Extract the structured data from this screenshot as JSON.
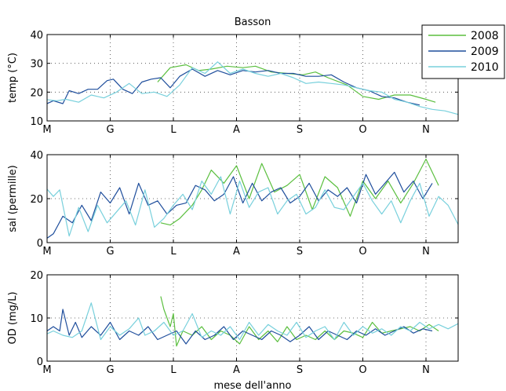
{
  "figure": {
    "title": "Basson",
    "xlabel": "mese dell'anno"
  },
  "legend": {
    "placement": "top-right",
    "entries": [
      {
        "label": "2008",
        "color": "#5bbf3f"
      },
      {
        "label": "2009",
        "color": "#1f4e9c"
      },
      {
        "label": "2010",
        "color": "#78d0dc"
      }
    ]
  },
  "chart_data": [
    {
      "type": "line",
      "title": "Basson",
      "xlabel": "",
      "ylabel": "temp (°C)",
      "xlim": [
        0,
        10
      ],
      "ylim": [
        10,
        40
      ],
      "yticks": [
        10,
        20,
        30,
        40
      ],
      "categories": [
        "M",
        "G",
        "L",
        "A",
        "S",
        "O",
        "N"
      ],
      "category_x": [
        0,
        1,
        2,
        3,
        4,
        5,
        6
      ],
      "grid": true,
      "series": [
        {
          "name": "2008",
          "color": "#5bbf3f",
          "x": [
            1.75,
            1.95,
            2.2,
            2.4,
            2.6,
            2.85,
            3.1,
            3.3,
            3.55,
            3.8,
            4.05,
            4.25,
            4.45,
            4.75,
            5.0,
            5.25,
            5.5,
            5.75,
            6.0,
            6.15
          ],
          "y": [
            23.5,
            28.5,
            29.5,
            27.5,
            28,
            29.0,
            28.5,
            29,
            27.0,
            26.5,
            26.0,
            27,
            25.0,
            22.5,
            18.5,
            17.5,
            19,
            19.0,
            17.5,
            16.5
          ]
        },
        {
          "name": "2009",
          "color": "#1f4e9c",
          "x": [
            -0.05,
            0.1,
            0.25,
            0.35,
            0.5,
            0.65,
            0.8,
            0.95,
            1.05,
            1.2,
            1.35,
            1.5,
            1.65,
            1.8,
            1.95,
            2.1,
            2.3,
            2.5,
            2.7,
            2.9,
            3.1,
            3.3,
            3.5,
            3.7,
            3.9,
            4.1,
            4.3,
            4.5,
            4.7,
            4.9,
            5.1,
            5.3,
            5.5,
            5.7,
            5.9
          ],
          "y": [
            15.5,
            17,
            16,
            20.5,
            19.5,
            21,
            21,
            24,
            24.5,
            21,
            19.5,
            23.5,
            24.5,
            25,
            21.5,
            25.5,
            28,
            25.5,
            27.5,
            26.0,
            27.5,
            27.0,
            27.5,
            26.5,
            26.5,
            25.5,
            25.5,
            26.0,
            23.5,
            21.5,
            20.5,
            18.5,
            18.0,
            16.5,
            15.5
          ]
        },
        {
          "name": "2010",
          "color": "#78d0dc",
          "x": [
            -0.05,
            0.15,
            0.3,
            0.5,
            0.7,
            0.9,
            1.1,
            1.3,
            1.5,
            1.7,
            1.9,
            2.1,
            2.3,
            2.5,
            2.7,
            2.9,
            3.1,
            3.3,
            3.5,
            3.7,
            3.9,
            4.1,
            4.3,
            4.5,
            4.7,
            4.9,
            5.1,
            5.3,
            5.5,
            5.7,
            5.9,
            6.1,
            6.3,
            6.55
          ],
          "y": [
            17.5,
            17,
            17.5,
            16.5,
            19,
            18,
            20,
            23,
            19.5,
            20,
            18.5,
            22.5,
            28.5,
            26.5,
            30.5,
            26.5,
            28,
            26.5,
            25.5,
            26.5,
            25,
            23,
            23.5,
            23.0,
            22.5,
            21.5,
            20.5,
            20.0,
            17.5,
            16.5,
            15.0,
            14.0,
            13.5,
            12.0
          ]
        }
      ]
    },
    {
      "type": "line",
      "xlabel": "",
      "ylabel": "sal (permille)",
      "xlim": [
        0,
        10
      ],
      "ylim": [
        0,
        40
      ],
      "yticks": [
        0,
        20,
        40
      ],
      "categories": [
        "M",
        "G",
        "L",
        "A",
        "S",
        "O",
        "N"
      ],
      "category_x": [
        0,
        1,
        2,
        3,
        4,
        5,
        6
      ],
      "grid": true,
      "series": [
        {
          "name": "2008",
          "color": "#5bbf3f",
          "x": [
            1.8,
            1.95,
            2.1,
            2.3,
            2.45,
            2.6,
            2.8,
            3.0,
            3.2,
            3.4,
            3.6,
            3.8,
            4.0,
            4.2,
            4.4,
            4.6,
            4.8,
            5.0,
            5.2,
            5.4,
            5.6,
            5.8,
            6.0,
            6.2
          ],
          "y": [
            9,
            8,
            11,
            17,
            24,
            33,
            27,
            35,
            20,
            36,
            23,
            26,
            31,
            15,
            30,
            25,
            12,
            28,
            20,
            28,
            18,
            27,
            38,
            26
          ]
        },
        {
          "name": "2009",
          "color": "#1f4e9c",
          "x": [
            -0.05,
            0.1,
            0.25,
            0.4,
            0.55,
            0.7,
            0.85,
            1.0,
            1.15,
            1.3,
            1.45,
            1.6,
            1.75,
            1.9,
            2.05,
            2.2,
            2.35,
            2.5,
            2.65,
            2.8,
            2.95,
            3.1,
            3.25,
            3.4,
            3.55,
            3.7,
            3.85,
            4.0,
            4.15,
            4.3,
            4.45,
            4.6,
            4.75,
            4.9,
            5.05,
            5.2,
            5.35,
            5.5,
            5.65,
            5.8,
            5.95,
            6.1
          ],
          "y": [
            1,
            4,
            12,
            9,
            17,
            10,
            23,
            18,
            25,
            13,
            27,
            17,
            19,
            13,
            17,
            18,
            26,
            24,
            19,
            22,
            30,
            18,
            27,
            19,
            23,
            25,
            18,
            21,
            27,
            19,
            24,
            21,
            25,
            18,
            31,
            22,
            27,
            32,
            23,
            28,
            20,
            27
          ]
        },
        {
          "name": "2010",
          "color": "#78d0dc",
          "x": [
            -0.05,
            0.1,
            0.2,
            0.35,
            0.5,
            0.65,
            0.8,
            0.95,
            1.1,
            1.25,
            1.4,
            1.55,
            1.7,
            1.85,
            2.0,
            2.15,
            2.3,
            2.45,
            2.6,
            2.75,
            2.9,
            3.05,
            3.2,
            3.35,
            3.5,
            3.65,
            3.8,
            3.95,
            4.1,
            4.25,
            4.4,
            4.55,
            4.7,
            4.85,
            5.0,
            5.15,
            5.3,
            5.45,
            5.6,
            5.75,
            5.9,
            6.05,
            6.2,
            6.35,
            6.55
          ],
          "y": [
            26,
            21,
            24,
            3,
            16,
            5,
            17,
            9,
            14,
            19,
            8,
            24,
            7,
            11,
            17,
            22,
            15,
            28,
            22,
            30,
            13,
            28,
            16,
            23,
            25,
            13,
            19,
            22,
            13,
            16,
            24,
            16,
            15,
            21,
            27,
            19,
            13,
            19,
            9,
            19,
            27,
            12,
            21,
            17,
            6
          ]
        }
      ]
    },
    {
      "type": "line",
      "xlabel": "mese dell'anno",
      "ylabel": "OD (mg/L)",
      "xlim": [
        0,
        10
      ],
      "ylim": [
        0,
        20
      ],
      "yticks": [
        0,
        10,
        20
      ],
      "categories": [
        "M",
        "G",
        "L",
        "A",
        "S",
        "O",
        "N"
      ],
      "category_x": [
        0,
        1,
        2,
        3,
        4,
        5,
        6
      ],
      "grid": true,
      "series": [
        {
          "name": "2008",
          "color": "#5bbf3f",
          "x": [
            1.8,
            1.85,
            1.9,
            1.95,
            2.0,
            2.05,
            2.15,
            2.3,
            2.45,
            2.6,
            2.75,
            2.9,
            3.05,
            3.2,
            3.35,
            3.5,
            3.65,
            3.8,
            3.95,
            4.1,
            4.25,
            4.4,
            4.55,
            4.7,
            4.85,
            5.0,
            5.15,
            5.3,
            5.45,
            5.6,
            5.75,
            5.9,
            6.05,
            6.2
          ],
          "y": [
            15,
            12,
            10,
            8,
            11,
            3.5,
            7,
            6,
            8,
            5,
            7,
            6,
            4,
            8,
            5,
            7,
            4.5,
            8,
            5,
            6,
            5,
            7,
            5,
            7,
            6.5,
            5.5,
            9,
            6.5,
            7,
            7.5,
            8,
            7,
            8.5,
            7
          ]
        },
        {
          "name": "2009",
          "color": "#1f4e9c",
          "x": [
            -0.05,
            0.1,
            0.2,
            0.25,
            0.35,
            0.45,
            0.55,
            0.7,
            0.85,
            1.0,
            1.15,
            1.3,
            1.45,
            1.6,
            1.75,
            1.9,
            2.05,
            2.2,
            2.35,
            2.5,
            2.65,
            2.8,
            2.95,
            3.1,
            3.25,
            3.4,
            3.55,
            3.7,
            3.85,
            4.0,
            4.15,
            4.3,
            4.45,
            4.6,
            4.75,
            4.9,
            5.05,
            5.2,
            5.35,
            5.5,
            5.65,
            5.8,
            5.95,
            6.1
          ],
          "y": [
            6.5,
            8,
            7,
            12,
            6,
            9,
            5.5,
            8,
            6,
            9,
            5,
            7,
            6,
            8,
            5,
            6,
            7,
            4,
            7,
            5,
            6,
            8,
            5,
            7,
            6,
            5,
            7,
            6,
            4.5,
            6,
            8,
            5,
            7,
            6,
            5,
            7,
            6,
            7.5,
            6,
            7,
            8,
            6.5,
            7.5,
            7
          ]
        },
        {
          "name": "2010",
          "color": "#78d0dc",
          "x": [
            -0.05,
            0.1,
            0.25,
            0.4,
            0.55,
            0.7,
            0.85,
            1.0,
            1.15,
            1.3,
            1.45,
            1.55,
            1.7,
            1.85,
            2.0,
            2.15,
            2.3,
            2.45,
            2.6,
            2.75,
            2.9,
            3.05,
            3.2,
            3.35,
            3.5,
            3.65,
            3.8,
            3.95,
            4.1,
            4.25,
            4.4,
            4.55,
            4.7,
            4.85,
            5.0,
            5.15,
            5.3,
            5.45,
            5.6,
            5.75,
            5.9,
            6.05,
            6.2,
            6.35,
            6.55
          ],
          "y": [
            6,
            7,
            6,
            5.5,
            7,
            13.5,
            5,
            8,
            6,
            7.5,
            10,
            6,
            7,
            9,
            6,
            7,
            11,
            5.5,
            7,
            6,
            8,
            5,
            9,
            6,
            8.5,
            7,
            6,
            9,
            5.5,
            7,
            8,
            5,
            9,
            6,
            8,
            6.5,
            7.5,
            6,
            8,
            7,
            9,
            7.5,
            8.5,
            7.5,
            9
          ]
        }
      ]
    }
  ]
}
